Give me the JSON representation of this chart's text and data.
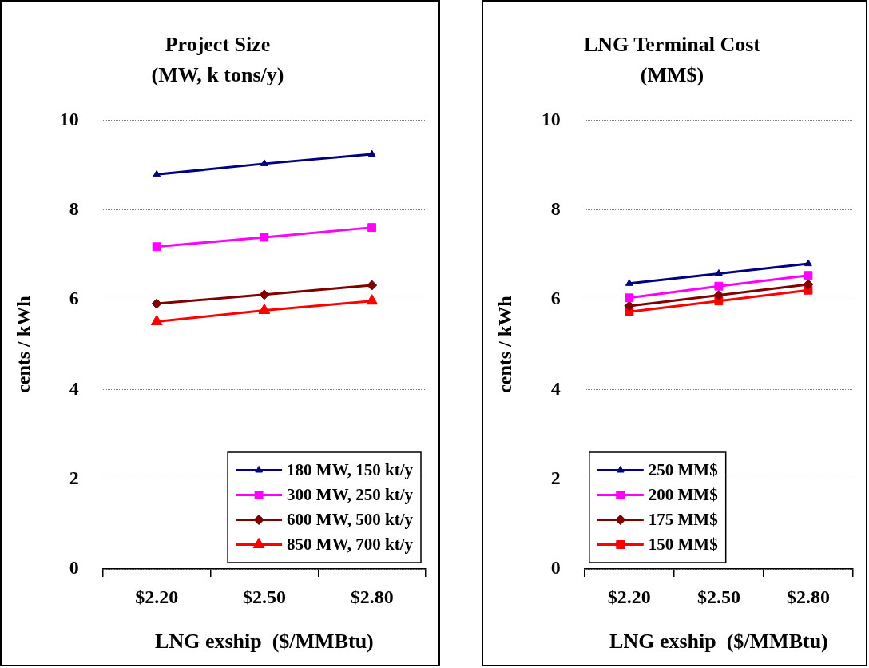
{
  "chart_data": [
    {
      "type": "line",
      "title": "Project Size",
      "subtitle": "(MW, k tons/y)",
      "xlabel": "LNG exship  ($/MMBtu)",
      "ylabel": "cents / kWh",
      "categories": [
        "$2.20",
        "$2.50",
        "$2.80"
      ],
      "ylim": [
        0,
        10
      ],
      "yticks": [
        0,
        2,
        4,
        6,
        8,
        10
      ],
      "grid": "y",
      "legend": "bottom right",
      "series": [
        {
          "name": "180 MW, 150 kt/y",
          "color": "#000080",
          "marker": "triangle",
          "values": [
            8.79,
            9.03,
            9.24
          ]
        },
        {
          "name": "300 MW, 250 kt/y",
          "color": "#ff00ff",
          "marker": "square",
          "values": [
            7.18,
            7.39,
            7.61
          ]
        },
        {
          "name": "600 MW, 500 kt/y",
          "color": "#800000",
          "marker": "diamond",
          "values": [
            5.91,
            6.11,
            6.32
          ]
        },
        {
          "name": "850 MW, 700 kt/y",
          "color": "#ff0000",
          "marker": "triangle",
          "values": [
            5.51,
            5.76,
            5.97
          ]
        }
      ]
    },
    {
      "type": "line",
      "title": "LNG Terminal Cost",
      "subtitle": "(MM$)",
      "xlabel": "LNG exship  ($/MMBtu)",
      "ylabel": "cents / kWh",
      "categories": [
        "$2.20",
        "$2.50",
        "$2.80"
      ],
      "ylim": [
        0,
        10
      ],
      "yticks": [
        0,
        2,
        4,
        6,
        8,
        10
      ],
      "grid": "y",
      "legend": "bottom left",
      "series": [
        {
          "name": "250 MM$",
          "color": "#000080",
          "marker": "triangle",
          "values": [
            6.36,
            6.58,
            6.8
          ]
        },
        {
          "name": "200 MM$",
          "color": "#ff00ff",
          "marker": "square",
          "values": [
            6.04,
            6.3,
            6.54
          ]
        },
        {
          "name": "175 MM$",
          "color": "#800000",
          "marker": "diamond",
          "values": [
            5.86,
            6.1,
            6.34
          ]
        },
        {
          "name": "150 MM$",
          "color": "#ff0000",
          "marker": "square",
          "values": [
            5.73,
            5.97,
            6.21
          ]
        }
      ]
    }
  ]
}
